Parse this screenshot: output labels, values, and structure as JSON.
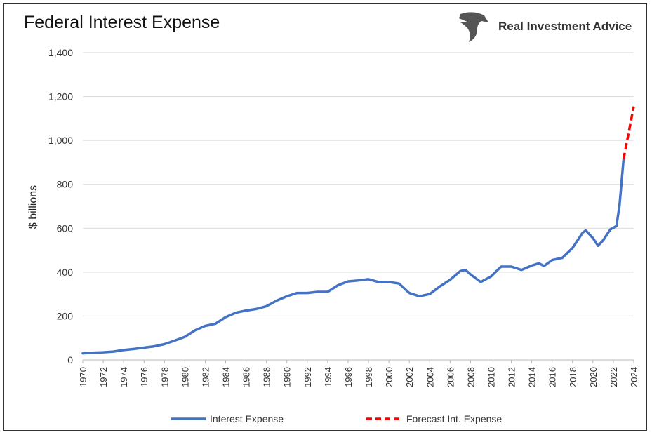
{
  "chart_data": {
    "type": "line",
    "title": "Federal Interest Expense",
    "ylabel": "$ billions",
    "xlabel": "",
    "ylim": [
      0,
      1400
    ],
    "xlim": [
      1970,
      2024
    ],
    "yticks": [
      "0",
      "200",
      "400",
      "600",
      "800",
      "1,000",
      "1,200",
      "1,400"
    ],
    "ytick_values": [
      0,
      200,
      400,
      600,
      800,
      1000,
      1200,
      1400
    ],
    "xticks": [
      "1970",
      "1972",
      "1974",
      "1976",
      "1978",
      "1980",
      "1982",
      "1984",
      "1986",
      "1988",
      "1990",
      "1992",
      "1994",
      "1996",
      "1998",
      "2000",
      "2002",
      "2004",
      "2006",
      "2008",
      "2010",
      "2012",
      "2014",
      "2016",
      "2018",
      "2020",
      "2022",
      "2024"
    ],
    "grid": true,
    "legend_position": "bottom",
    "series": [
      {
        "name": "Interest Expense",
        "color": "#4472C4",
        "style": "solid",
        "x": [
          1970,
          1971,
          1972,
          1973,
          1974,
          1975,
          1976,
          1977,
          1978,
          1979,
          1980,
          1981,
          1982,
          1983,
          1984,
          1985,
          1986,
          1987,
          1988,
          1989,
          1990,
          1991,
          1992,
          1993,
          1994,
          1995,
          1996,
          1997,
          1998,
          1999,
          2000,
          2001,
          2002,
          2003,
          2004,
          2005,
          2006,
          2007,
          2007.5,
          2008,
          2009,
          2010,
          2011,
          2012,
          2013,
          2014,
          2014.7,
          2015.2,
          2016,
          2017,
          2018,
          2019,
          2019.3,
          2020,
          2020.5,
          2021,
          2021.7,
          2022.3,
          2022.6,
          2023
        ],
        "y": [
          30,
          33,
          35,
          38,
          45,
          50,
          56,
          62,
          72,
          88,
          105,
          135,
          155,
          165,
          195,
          215,
          225,
          232,
          245,
          270,
          290,
          305,
          305,
          310,
          310,
          340,
          358,
          362,
          368,
          355,
          355,
          348,
          305,
          290,
          300,
          335,
          365,
          405,
          410,
          390,
          355,
          380,
          425,
          425,
          410,
          430,
          440,
          428,
          455,
          465,
          510,
          580,
          590,
          555,
          520,
          545,
          595,
          610,
          700,
          915
        ]
      },
      {
        "name": "Forecast Int. Expense",
        "color": "#FF0000",
        "style": "dashed",
        "x": [
          2023,
          2024
        ],
        "y": [
          915,
          1155
        ]
      }
    ]
  },
  "brand": {
    "name": "Real Investment Advice"
  }
}
